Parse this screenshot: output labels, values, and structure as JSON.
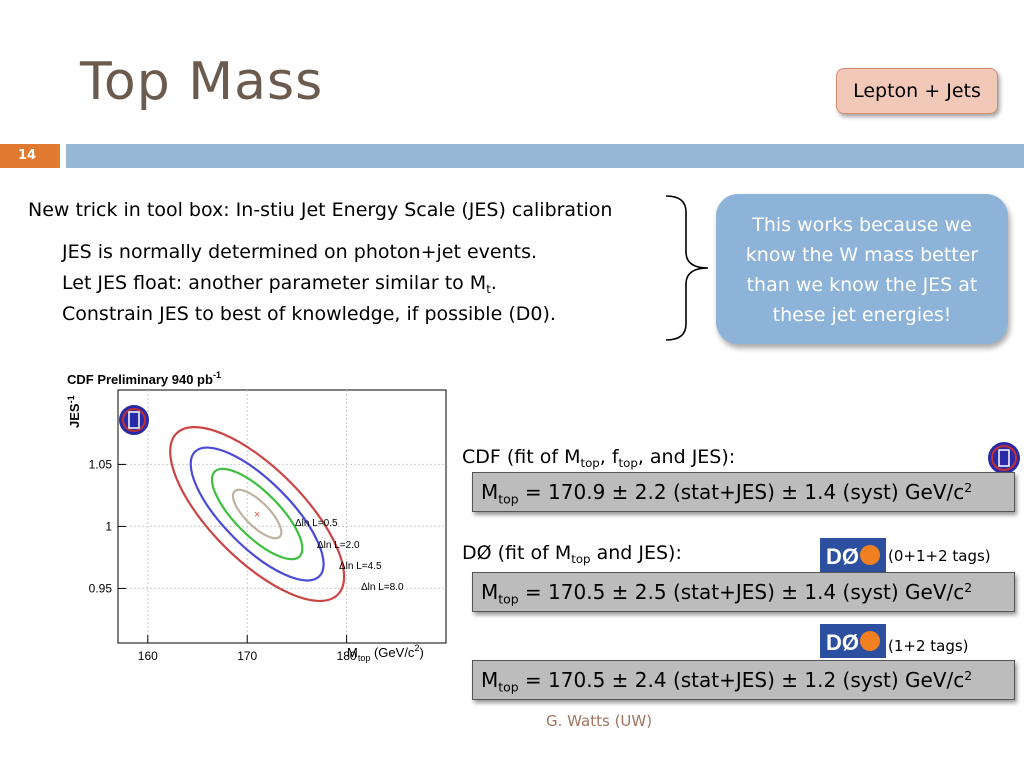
{
  "slide": {
    "title": "Top Mass",
    "tag": "Lepton + Jets",
    "number": "14",
    "intro": "New trick in tool box: In-stiu Jet Energy Scale (JES) calibration",
    "bullet1": "JES is normally determined on photon+jet events.",
    "bullet2_pre": "Let JES float: another parameter similar to M",
    "bullet2_sub": "t",
    "bullet2_post": ".",
    "bullet3": "Constrain JES to best of knowledge, if possible (D0).",
    "callout": [
      "This works because we",
      "know the W mass better",
      "than we know the JES at",
      "these jet energies!"
    ],
    "cdf_head": {
      "t1": "CDF (fit of M",
      "s1": "top",
      "t2": ", f",
      "s2": "top",
      "t3": ", and JES):"
    },
    "d0_head": {
      "t1": "DØ (fit of M",
      "s1": "top",
      "t2": " and JES):"
    },
    "d0_tags1": "(0+1+2 tags)",
    "d0_tags2": "(1+2 tags)",
    "results": [
      {
        "m": "M",
        "sub": "top",
        "text": " = 170.9 ± 2.2 (stat+JES) ± 1.4 (syst) GeV/c",
        "sup": "2"
      },
      {
        "m": "M",
        "sub": "top",
        "text": " = 170.5 ± 2.5 (stat+JES) ± 1.4 (syst) GeV/c",
        "sup": "2"
      },
      {
        "m": "M",
        "sub": "top",
        "text": " = 170.5 ± 2.4 (stat+JES) ± 1.2 (syst) GeV/c",
        "sup": "2"
      }
    ],
    "d0_logo_text": "DØ",
    "footer": "G. Watts (UW)"
  },
  "chart_data": {
    "type": "contour",
    "title": "CDF Preliminary 940 pb",
    "title_sup": "-1",
    "xlabel": {
      "main": "M",
      "sub": "top",
      "rest": " (GeV/c",
      "sup": "2",
      "end": ")"
    },
    "ylabel": {
      "main": "JES",
      "sup": "-1"
    },
    "xlim": [
      157,
      190
    ],
    "ylim": [
      0.906,
      1.11
    ],
    "xticks": [
      160,
      170,
      180
    ],
    "yticks": [
      0.95,
      1,
      1.05
    ],
    "ytick_labels": [
      "0.95",
      "1",
      "1.05"
    ],
    "best_fit": {
      "x": 171,
      "y": 1.01
    },
    "contours": [
      {
        "label": "Δln L=0.5",
        "color": "#bfb2a2"
      },
      {
        "label": "Δln L=2.0",
        "color": "#3fbf3f"
      },
      {
        "label": "Δln L=4.5",
        "color": "#4a4ad8"
      },
      {
        "label": "Δln L=8.0",
        "color": "#cc4444"
      }
    ]
  }
}
